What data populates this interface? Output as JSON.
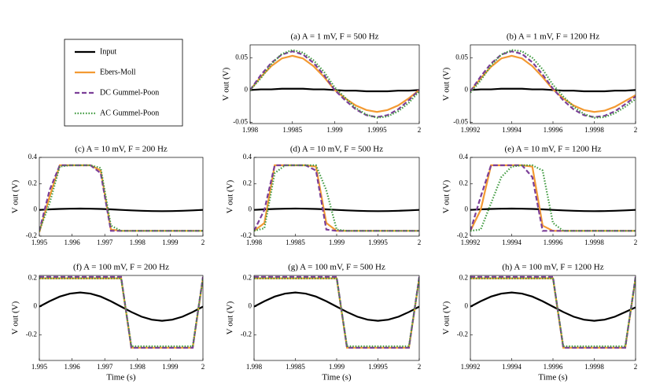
{
  "chart_data": [
    {
      "type": "line",
      "title": "(a) A = 1 mV, F = 500 Hz",
      "ylabel": "V out (V)",
      "x": [
        1.998,
        1.998125,
        1.99825,
        1.998375,
        1.9985,
        1.998625,
        1.99875,
        1.998875,
        1.999,
        1.999125,
        1.99925,
        1.999375,
        1.9995,
        1.999625,
        1.99975,
        1.999875,
        2
      ],
      "xlim": [
        1.998,
        2
      ],
      "xticks": [
        1.998,
        1.9985,
        1.999,
        1.9995,
        2
      ],
      "ylim": [
        -0.052,
        0.07
      ],
      "yticks": [
        -0.05,
        0,
        0.05
      ],
      "series": [
        {
          "name": "Input",
          "color": "#000000",
          "dash": "solid",
          "values": [
            0,
            0.001,
            0.001,
            0.002,
            0.002,
            0.002,
            0.001,
            0.001,
            0,
            -0.001,
            -0.001,
            -0.002,
            -0.002,
            -0.002,
            -0.001,
            -0.001,
            0
          ]
        },
        {
          "name": "Ebers-Moll",
          "color": "#f39a33",
          "dash": "solid",
          "values": [
            0,
            0.02,
            0.037,
            0.049,
            0.053,
            0.049,
            0.037,
            0.02,
            0,
            -0.013,
            -0.024,
            -0.031,
            -0.034,
            -0.031,
            -0.024,
            -0.013,
            0
          ]
        },
        {
          "name": "DC Gummel-Poon",
          "color": "#7b3f98",
          "dash": "dashed",
          "values": [
            0,
            0.023,
            0.042,
            0.055,
            0.06,
            0.055,
            0.042,
            0.023,
            0,
            -0.016,
            -0.03,
            -0.039,
            -0.042,
            -0.039,
            -0.03,
            -0.016,
            0
          ]
        },
        {
          "name": "AC Gummel-Poon",
          "color": "#3f9a3f",
          "dash": "dotted",
          "values": [
            0,
            0.018,
            0.04,
            0.056,
            0.062,
            0.058,
            0.046,
            0.028,
            0.004,
            -0.012,
            -0.028,
            -0.038,
            -0.043,
            -0.041,
            -0.033,
            -0.02,
            -0.002
          ]
        }
      ]
    },
    {
      "type": "line",
      "title": "(b) A = 1 mV, F = 1200 Hz",
      "ylabel": "V out (V)",
      "x": [
        1.9992,
        1.99925,
        1.9993,
        1.99935,
        1.9994,
        1.99945,
        1.9995,
        1.99955,
        1.9996,
        1.99965,
        1.9997,
        1.99975,
        1.9998,
        1.99985,
        1.9999,
        1.99995,
        2
      ],
      "xlim": [
        1.9992,
        2
      ],
      "xticks": [
        1.9992,
        1.9994,
        1.9996,
        1.9998,
        2
      ],
      "ylim": [
        -0.052,
        0.07
      ],
      "yticks": [
        -0.05,
        0,
        0.05
      ],
      "series": [
        {
          "color": "#000000",
          "dash": "solid",
          "values": [
            0,
            0.001,
            0.001,
            0.002,
            0.002,
            0.002,
            0.001,
            0.001,
            0,
            -0.001,
            -0.001,
            -0.002,
            -0.002,
            -0.002,
            -0.001,
            -0.001,
            0
          ]
        },
        {
          "color": "#f39a33",
          "dash": "solid",
          "values": [
            -0.002,
            0.018,
            0.036,
            0.049,
            0.053,
            0.049,
            0.037,
            0.02,
            0.001,
            -0.013,
            -0.024,
            -0.031,
            -0.034,
            -0.032,
            -0.026,
            -0.017,
            -0.008
          ]
        },
        {
          "color": "#7b3f98",
          "dash": "dashed",
          "values": [
            -0.002,
            0.021,
            0.041,
            0.055,
            0.06,
            0.056,
            0.043,
            0.024,
            0.002,
            -0.016,
            -0.03,
            -0.039,
            -0.042,
            -0.04,
            -0.033,
            -0.022,
            -0.01
          ]
        },
        {
          "color": "#3f9a3f",
          "dash": "dotted",
          "values": [
            -0.004,
            0.015,
            0.038,
            0.055,
            0.062,
            0.06,
            0.05,
            0.032,
            0.008,
            -0.01,
            -0.026,
            -0.037,
            -0.043,
            -0.042,
            -0.036,
            -0.026,
            -0.014
          ]
        }
      ]
    },
    {
      "type": "line",
      "title": "(c) A = 10 mV, F = 200 Hz",
      "ylabel": "V out (V)",
      "x": [
        1.995,
        1.9953125,
        1.995625,
        1.9959375,
        1.99625,
        1.9965625,
        1.996875,
        1.9971875,
        1.9975,
        1.9978125,
        1.998125,
        1.9984375,
        1.99875,
        1.9990625,
        1.999375,
        1.9996875,
        2
      ],
      "xlim": [
        1.995,
        2
      ],
      "xticks": [
        1.995,
        1.996,
        1.997,
        1.998,
        1.999,
        2
      ],
      "ylim": [
        -0.2,
        0.4
      ],
      "yticks": [
        -0.2,
        0,
        0.2,
        0.4
      ],
      "series": [
        {
          "color": "#000000",
          "dash": "solid",
          "values": [
            0,
            0.004,
            0.007,
            0.009,
            0.01,
            0.009,
            0.007,
            0.004,
            0,
            -0.004,
            -0.007,
            -0.009,
            -0.01,
            -0.009,
            -0.007,
            -0.004,
            0
          ]
        },
        {
          "color": "#f39a33",
          "dash": "solid",
          "values": [
            -0.17,
            0.1,
            0.34,
            0.34,
            0.34,
            0.34,
            0.3,
            -0.15,
            -0.16,
            -0.16,
            -0.16,
            -0.16,
            -0.16,
            -0.16,
            -0.16,
            -0.16,
            -0.16
          ]
        },
        {
          "color": "#7b3f98",
          "dash": "dashed",
          "values": [
            -0.16,
            0.15,
            0.34,
            0.34,
            0.34,
            0.34,
            0.28,
            -0.16,
            -0.16,
            -0.16,
            -0.16,
            -0.16,
            -0.16,
            -0.16,
            -0.16,
            -0.16,
            -0.16
          ]
        },
        {
          "color": "#3f9a3f",
          "dash": "dotted",
          "values": [
            -0.16,
            0.05,
            0.33,
            0.34,
            0.34,
            0.34,
            0.32,
            -0.12,
            -0.16,
            -0.16,
            -0.16,
            -0.16,
            -0.16,
            -0.16,
            -0.16,
            -0.16,
            -0.16
          ]
        }
      ]
    },
    {
      "type": "line",
      "title": "(d) A = 10 mV, F = 500 Hz",
      "ylabel": "V out (V)",
      "x": [
        1.998,
        1.998125,
        1.99825,
        1.998375,
        1.9985,
        1.998625,
        1.99875,
        1.998875,
        1.999,
        1.999125,
        1.99925,
        1.999375,
        1.9995,
        1.999625,
        1.99975,
        1.999875,
        2
      ],
      "xlim": [
        1.998,
        2
      ],
      "xticks": [
        1.998,
        1.9985,
        1.999,
        1.9995,
        2
      ],
      "ylim": [
        -0.2,
        0.4
      ],
      "yticks": [
        -0.2,
        0,
        0.2,
        0.4
      ],
      "series": [
        {
          "color": "#000000",
          "dash": "solid",
          "values": [
            0,
            0.004,
            0.007,
            0.009,
            0.01,
            0.009,
            0.007,
            0.004,
            0,
            -0.004,
            -0.007,
            -0.009,
            -0.01,
            -0.009,
            -0.007,
            -0.004,
            0
          ]
        },
        {
          "color": "#f39a33",
          "dash": "solid",
          "values": [
            -0.16,
            -0.1,
            0.34,
            0.34,
            0.34,
            0.34,
            0.33,
            -0.1,
            -0.16,
            -0.16,
            -0.16,
            -0.16,
            -0.16,
            -0.16,
            -0.16,
            -0.16,
            -0.16
          ]
        },
        {
          "color": "#7b3f98",
          "dash": "dashed",
          "values": [
            -0.16,
            0,
            0.34,
            0.34,
            0.34,
            0.34,
            0.3,
            -0.15,
            -0.16,
            -0.16,
            -0.16,
            -0.16,
            -0.16,
            -0.16,
            -0.16,
            -0.16,
            -0.16
          ]
        },
        {
          "color": "#3f9a3f",
          "dash": "dotted",
          "values": [
            -0.16,
            -0.14,
            0.28,
            0.34,
            0.34,
            0.34,
            0.34,
            0.15,
            -0.15,
            -0.16,
            -0.16,
            -0.16,
            -0.16,
            -0.16,
            -0.16,
            -0.16,
            -0.16
          ]
        }
      ]
    },
    {
      "type": "line",
      "title": "(e) A = 10 mV, F = 1200 Hz",
      "ylabel": "V out (V)",
      "x": [
        1.9992,
        1.99925,
        1.9993,
        1.99935,
        1.9994,
        1.99945,
        1.9995,
        1.99955,
        1.9996,
        1.99965,
        1.9997,
        1.99975,
        1.9998,
        1.99985,
        1.9999,
        1.99995,
        2
      ],
      "xlim": [
        1.9992,
        2
      ],
      "xticks": [
        1.9992,
        1.9994,
        1.9996,
        1.9998,
        2
      ],
      "ylim": [
        -0.2,
        0.4
      ],
      "yticks": [
        -0.2,
        0,
        0.2,
        0.4
      ],
      "series": [
        {
          "color": "#000000",
          "dash": "solid",
          "values": [
            0,
            0.004,
            0.007,
            0.009,
            0.01,
            0.009,
            0.007,
            0.004,
            0,
            -0.004,
            -0.007,
            -0.009,
            -0.01,
            -0.009,
            -0.007,
            -0.004,
            0
          ]
        },
        {
          "color": "#f39a33",
          "dash": "solid",
          "values": [
            -0.16,
            0,
            0.34,
            0.34,
            0.34,
            0.34,
            0.33,
            -0.12,
            -0.16,
            -0.16,
            -0.16,
            -0.16,
            -0.16,
            -0.16,
            -0.16,
            -0.16,
            -0.16
          ]
        },
        {
          "color": "#7b3f98",
          "dash": "dashed",
          "values": [
            -0.16,
            0.1,
            0.34,
            0.34,
            0.34,
            0.34,
            0.25,
            -0.16,
            -0.16,
            -0.16,
            -0.16,
            -0.16,
            -0.16,
            -0.16,
            -0.16,
            -0.16,
            -0.16
          ]
        },
        {
          "color": "#3f9a3f",
          "dash": "dotted",
          "values": [
            -0.16,
            -0.15,
            0.05,
            0.25,
            0.33,
            0.34,
            0.34,
            0.3,
            -0.1,
            -0.16,
            -0.16,
            -0.16,
            -0.16,
            -0.16,
            -0.16,
            -0.16,
            -0.16
          ]
        }
      ]
    },
    {
      "type": "line",
      "title": "(f) A = 100 mV, F = 200 Hz",
      "ylabel": "V out (V)",
      "xlabel": "Time (s)",
      "x": [
        1.995,
        1.9953125,
        1.995625,
        1.9959375,
        1.99625,
        1.9965625,
        1.996875,
        1.9971875,
        1.9975,
        1.9978125,
        1.998125,
        1.9984375,
        1.99875,
        1.9990625,
        1.999375,
        1.9996875,
        2
      ],
      "xlim": [
        1.995,
        2
      ],
      "xticks": [
        1.995,
        1.996,
        1.997,
        1.998,
        1.999,
        2
      ],
      "ylim": [
        -0.38,
        0.22
      ],
      "yticks": [
        -0.2,
        0,
        0.2
      ],
      "series": [
        {
          "color": "#000000",
          "dash": "solid",
          "values": [
            0,
            0.038,
            0.071,
            0.092,
            0.1,
            0.092,
            0.071,
            0.038,
            0,
            -0.038,
            -0.071,
            -0.092,
            -0.1,
            -0.092,
            -0.071,
            -0.038,
            0
          ]
        },
        {
          "color": "#f39a33",
          "dash": "solid",
          "values": [
            0.2,
            0.2,
            0.2,
            0.2,
            0.2,
            0.2,
            0.2,
            0.2,
            0.2,
            -0.29,
            -0.29,
            -0.29,
            -0.29,
            -0.29,
            -0.29,
            -0.29,
            0.2
          ]
        },
        {
          "color": "#7b3f98",
          "dash": "dashed",
          "values": [
            0.21,
            0.21,
            0.21,
            0.21,
            0.21,
            0.21,
            0.21,
            0.21,
            0.21,
            -0.29,
            -0.29,
            -0.29,
            -0.29,
            -0.29,
            -0.29,
            -0.29,
            0.21
          ]
        },
        {
          "color": "#3f9a3f",
          "dash": "dotted",
          "values": [
            0.2,
            0.2,
            0.2,
            0.2,
            0.2,
            0.2,
            0.2,
            0.2,
            0.2,
            -0.28,
            -0.28,
            -0.28,
            -0.28,
            -0.28,
            -0.28,
            -0.28,
            0.2
          ]
        }
      ]
    },
    {
      "type": "line",
      "title": "(g) A = 100 mV, F = 500 Hz",
      "ylabel": "V out (V)",
      "xlabel": "Time (s)",
      "x": [
        1.998,
        1.998125,
        1.99825,
        1.998375,
        1.9985,
        1.998625,
        1.99875,
        1.998875,
        1.999,
        1.999125,
        1.99925,
        1.999375,
        1.9995,
        1.999625,
        1.99975,
        1.999875,
        2
      ],
      "xlim": [
        1.998,
        2
      ],
      "xticks": [
        1.998,
        1.9985,
        1.999,
        1.9995,
        2
      ],
      "ylim": [
        -0.38,
        0.22
      ],
      "yticks": [
        -0.2,
        0,
        0.2
      ],
      "series": [
        {
          "color": "#000000",
          "dash": "solid",
          "values": [
            0,
            0.038,
            0.071,
            0.092,
            0.1,
            0.092,
            0.071,
            0.038,
            0,
            -0.038,
            -0.071,
            -0.092,
            -0.1,
            -0.092,
            -0.071,
            -0.038,
            0
          ]
        },
        {
          "color": "#f39a33",
          "dash": "solid",
          "values": [
            0.2,
            0.2,
            0.2,
            0.2,
            0.2,
            0.2,
            0.2,
            0.2,
            0.2,
            -0.29,
            -0.29,
            -0.29,
            -0.29,
            -0.29,
            -0.29,
            -0.29,
            0.2
          ]
        },
        {
          "color": "#7b3f98",
          "dash": "dashed",
          "values": [
            0.21,
            0.21,
            0.21,
            0.21,
            0.21,
            0.21,
            0.21,
            0.21,
            0.21,
            -0.29,
            -0.29,
            -0.29,
            -0.29,
            -0.29,
            -0.29,
            -0.29,
            0.21
          ]
        },
        {
          "color": "#3f9a3f",
          "dash": "dotted",
          "values": [
            0.2,
            0.2,
            0.2,
            0.2,
            0.2,
            0.2,
            0.2,
            0.2,
            0.2,
            -0.28,
            -0.28,
            -0.28,
            -0.28,
            -0.28,
            -0.28,
            -0.28,
            0.2
          ]
        }
      ]
    },
    {
      "type": "line",
      "title": "(h) A = 100 mV, F = 1200 Hz",
      "ylabel": "V out (V)",
      "xlabel": "Time (s)",
      "x": [
        1.9992,
        1.99925,
        1.9993,
        1.99935,
        1.9994,
        1.99945,
        1.9995,
        1.99955,
        1.9996,
        1.99965,
        1.9997,
        1.99975,
        1.9998,
        1.99985,
        1.9999,
        1.99995,
        2
      ],
      "xlim": [
        1.9992,
        2
      ],
      "xticks": [
        1.9992,
        1.9994,
        1.9996,
        1.9998,
        2
      ],
      "ylim": [
        -0.38,
        0.22
      ],
      "yticks": [
        -0.2,
        0,
        0.2
      ],
      "series": [
        {
          "color": "#000000",
          "dash": "solid",
          "values": [
            0,
            0.038,
            0.071,
            0.092,
            0.1,
            0.092,
            0.071,
            0.038,
            0,
            -0.038,
            -0.071,
            -0.092,
            -0.1,
            -0.092,
            -0.071,
            -0.038,
            -0.005
          ]
        },
        {
          "color": "#f39a33",
          "dash": "solid",
          "values": [
            0.2,
            0.2,
            0.2,
            0.2,
            0.2,
            0.2,
            0.2,
            0.2,
            0.2,
            -0.29,
            -0.29,
            -0.29,
            -0.29,
            -0.29,
            -0.29,
            -0.29,
            0.2
          ]
        },
        {
          "color": "#7b3f98",
          "dash": "dashed",
          "values": [
            0.21,
            0.21,
            0.21,
            0.21,
            0.21,
            0.21,
            0.21,
            0.21,
            0.21,
            -0.29,
            -0.29,
            -0.29,
            -0.29,
            -0.29,
            -0.29,
            -0.29,
            0.21
          ]
        },
        {
          "color": "#3f9a3f",
          "dash": "dotted",
          "values": [
            0.2,
            0.2,
            0.2,
            0.2,
            0.2,
            0.2,
            0.2,
            0.2,
            0.2,
            -0.28,
            -0.28,
            -0.28,
            -0.28,
            -0.28,
            -0.28,
            -0.28,
            0.2
          ]
        }
      ]
    }
  ]
}
